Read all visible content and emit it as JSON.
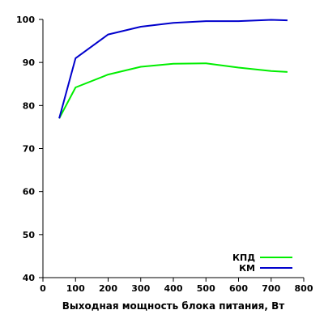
{
  "chart_data": {
    "type": "line",
    "title": "",
    "xlabel": "Выходная мощность блока питания, Вт",
    "ylabel": "",
    "xlim": [
      0,
      800
    ],
    "ylim": [
      40,
      100
    ],
    "xticks": [
      0,
      100,
      200,
      300,
      400,
      500,
      600,
      700,
      800
    ],
    "yticks": [
      40,
      50,
      60,
      70,
      80,
      90,
      100
    ],
    "grid": false,
    "legend_position": "bottom-right",
    "series": [
      {
        "name": "КПД",
        "color": "#00ee00",
        "points": [
          [
            50,
            77
          ],
          [
            100,
            84.2
          ],
          [
            200,
            87.2
          ],
          [
            300,
            89
          ],
          [
            400,
            89.7
          ],
          [
            500,
            89.8
          ],
          [
            600,
            88.8
          ],
          [
            700,
            88
          ],
          [
            750,
            87.8
          ]
        ]
      },
      {
        "name": "КМ",
        "color": "#0000cc",
        "points": [
          [
            50,
            77
          ],
          [
            100,
            91
          ],
          [
            200,
            96.5
          ],
          [
            300,
            98.3
          ],
          [
            400,
            99.2
          ],
          [
            500,
            99.6
          ],
          [
            600,
            99.6
          ],
          [
            700,
            99.9
          ],
          [
            750,
            99.8
          ]
        ]
      }
    ]
  }
}
